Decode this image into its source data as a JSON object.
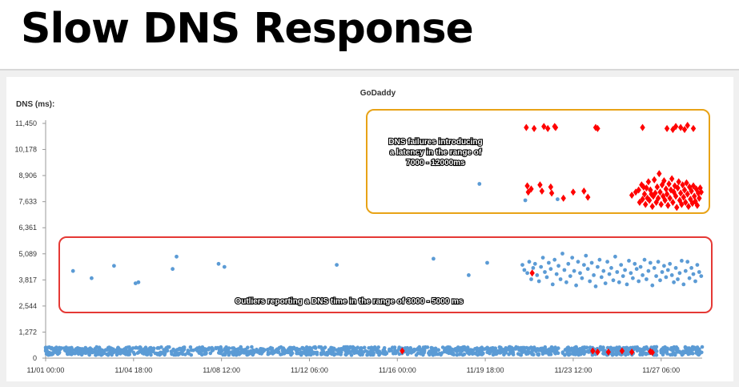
{
  "slide_title": "Slow DNS Response",
  "chart_data": {
    "type": "scatter",
    "title": "GoDaddy",
    "ylabel": "DNS (ms):",
    "xlabel": "",
    "ylim": [
      0,
      11450
    ],
    "yticks": [
      0,
      1272,
      2544,
      3817,
      5089,
      6361,
      7633,
      8906,
      10178,
      11450
    ],
    "ytick_labels": [
      "0",
      "1,272",
      "2,544",
      "3,817",
      "5,089",
      "6,361",
      "7,633",
      "8,906",
      "10,178",
      "11,450"
    ],
    "xlim_hours": [
      0,
      672
    ],
    "xticks": [
      {
        "label": "11/01 00:00",
        "h": 0
      },
      {
        "label": "11/04 18:00",
        "h": 90
      },
      {
        "label": "11/08 12:00",
        "h": 180
      },
      {
        "label": "11/12 06:00",
        "h": 270
      },
      {
        "label": "11/16 00:00",
        "h": 360
      },
      {
        "label": "11/19 18:00",
        "h": 450
      },
      {
        "label": "11/23 12:00",
        "h": 540
      },
      {
        "label": "11/27 06:00",
        "h": 630
      }
    ],
    "grid": false,
    "series": [
      {
        "color": "#5b9bd5",
        "marker": "circle",
        "outliers": [
          [
            28,
            4250
          ],
          [
            47,
            3900
          ],
          [
            70,
            4500
          ],
          [
            92,
            3650
          ],
          [
            95,
            3700
          ],
          [
            130,
            4350
          ],
          [
            134,
            4950
          ],
          [
            177,
            4600
          ],
          [
            183,
            4450
          ],
          [
            298,
            4550
          ],
          [
            397,
            4850
          ],
          [
            433,
            4050
          ],
          [
            452,
            4650
          ],
          [
            444,
            8500
          ],
          [
            491,
            7700
          ],
          [
            524,
            7750
          ],
          [
            488,
            4550
          ],
          [
            490,
            4300
          ],
          [
            493,
            4150
          ],
          [
            495,
            4700
          ],
          [
            497,
            3850
          ],
          [
            499,
            4400
          ],
          [
            501,
            4600
          ],
          [
            503,
            4050
          ],
          [
            505,
            3750
          ],
          [
            507,
            4450
          ],
          [
            509,
            4900
          ],
          [
            511,
            4200
          ],
          [
            513,
            3950
          ],
          [
            515,
            4650
          ],
          [
            517,
            4350
          ],
          [
            519,
            3600
          ],
          [
            521,
            4800
          ],
          [
            523,
            4100
          ],
          [
            525,
            4500
          ],
          [
            527,
            3850
          ],
          [
            529,
            5100
          ],
          [
            531,
            4300
          ],
          [
            533,
            3700
          ],
          [
            535,
            4600
          ],
          [
            537,
            4000
          ],
          [
            539,
            4900
          ],
          [
            541,
            4250
          ],
          [
            543,
            3550
          ],
          [
            545,
            4700
          ],
          [
            547,
            4150
          ],
          [
            549,
            3900
          ],
          [
            551,
            4550
          ],
          [
            553,
            5000
          ],
          [
            555,
            4350
          ],
          [
            557,
            3750
          ],
          [
            559,
            4650
          ],
          [
            561,
            4050
          ],
          [
            563,
            3500
          ],
          [
            565,
            4450
          ],
          [
            567,
            4800
          ],
          [
            569,
            3950
          ],
          [
            571,
            4250
          ],
          [
            573,
            3650
          ],
          [
            575,
            4700
          ],
          [
            577,
            4100
          ],
          [
            579,
            4400
          ],
          [
            581,
            3800
          ],
          [
            583,
            4950
          ],
          [
            585,
            4200
          ],
          [
            587,
            3700
          ],
          [
            589,
            4550
          ],
          [
            591,
            4000
          ],
          [
            593,
            4300
          ],
          [
            595,
            3600
          ],
          [
            597,
            4750
          ],
          [
            599,
            4150
          ],
          [
            601,
            3900
          ],
          [
            603,
            4600
          ],
          [
            605,
            4350
          ],
          [
            607,
            3750
          ],
          [
            609,
            4450
          ],
          [
            611,
            4050
          ],
          [
            613,
            4800
          ],
          [
            615,
            3850
          ],
          [
            617,
            4250
          ],
          [
            619,
            4650
          ],
          [
            621,
            3550
          ],
          [
            623,
            4400
          ],
          [
            625,
            4000
          ],
          [
            627,
            4700
          ],
          [
            629,
            3800
          ],
          [
            631,
            4200
          ],
          [
            633,
            4500
          ],
          [
            635,
            3950
          ],
          [
            637,
            4300
          ],
          [
            639,
            4600
          ],
          [
            641,
            4050
          ],
          [
            643,
            3700
          ],
          [
            645,
            4400
          ],
          [
            647,
            3850
          ],
          [
            649,
            4150
          ],
          [
            651,
            4750
          ],
          [
            653,
            3600
          ],
          [
            655,
            4250
          ],
          [
            657,
            4700
          ],
          [
            659,
            3900
          ],
          [
            661,
            4400
          ],
          [
            663,
            4100
          ],
          [
            665,
            3750
          ],
          [
            667,
            4550
          ],
          [
            669,
            4200
          ],
          [
            671,
            4000
          ]
        ],
        "baseline_range_ms": [
          150,
          550
        ]
      },
      {
        "color": "#ff0000",
        "marker": "diamond",
        "points": [
          [
            492,
            11250
          ],
          [
            500,
            11200
          ],
          [
            510,
            11300
          ],
          [
            514,
            11200
          ],
          [
            521,
            11300
          ],
          [
            522,
            11250
          ],
          [
            563,
            11250
          ],
          [
            565,
            11200
          ],
          [
            611,
            11250
          ],
          [
            636,
            11200
          ],
          [
            642,
            11150
          ],
          [
            645,
            11300
          ],
          [
            650,
            11250
          ],
          [
            654,
            11150
          ],
          [
            657,
            11350
          ],
          [
            663,
            11200
          ],
          [
            493,
            8400
          ],
          [
            494,
            8100
          ],
          [
            497,
            8250
          ],
          [
            506,
            8450
          ],
          [
            508,
            8150
          ],
          [
            517,
            8350
          ],
          [
            518,
            8050
          ],
          [
            530,
            7800
          ],
          [
            540,
            8100
          ],
          [
            551,
            8150
          ],
          [
            555,
            7850
          ],
          [
            600,
            7950
          ],
          [
            607,
            8200
          ],
          [
            612,
            8350
          ],
          [
            616,
            7800
          ],
          [
            620,
            8000
          ],
          [
            604,
            8100
          ],
          [
            608,
            7600
          ],
          [
            610,
            8450
          ],
          [
            611,
            7750
          ],
          [
            613,
            8000
          ],
          [
            614,
            7500
          ],
          [
            615,
            8300
          ],
          [
            617,
            8600
          ],
          [
            618,
            7700
          ],
          [
            619,
            8200
          ],
          [
            621,
            7400
          ],
          [
            622,
            7900
          ],
          [
            623,
            8700
          ],
          [
            624,
            8050
          ],
          [
            625,
            7600
          ],
          [
            626,
            8350
          ],
          [
            627,
            7800
          ],
          [
            628,
            9000
          ],
          [
            629,
            8100
          ],
          [
            630,
            7500
          ],
          [
            631,
            8450
          ],
          [
            632,
            7900
          ],
          [
            633,
            8650
          ],
          [
            634,
            7700
          ],
          [
            635,
            8250
          ],
          [
            636,
            8000
          ],
          [
            637,
            7450
          ],
          [
            638,
            8500
          ],
          [
            639,
            7800
          ],
          [
            640,
            8200
          ],
          [
            641,
            8750
          ],
          [
            642,
            7600
          ],
          [
            643,
            8100
          ],
          [
            644,
            8400
          ],
          [
            645,
            7900
          ],
          [
            646,
            7350
          ],
          [
            647,
            8300
          ],
          [
            648,
            8600
          ],
          [
            649,
            7700
          ],
          [
            650,
            8050
          ],
          [
            651,
            7500
          ],
          [
            652,
            8450
          ],
          [
            653,
            7850
          ],
          [
            654,
            8200
          ],
          [
            655,
            7600
          ],
          [
            656,
            8550
          ],
          [
            657,
            8000
          ],
          [
            658,
            7400
          ],
          [
            659,
            8350
          ],
          [
            660,
            7750
          ],
          [
            661,
            8150
          ],
          [
            662,
            7550
          ],
          [
            663,
            8400
          ],
          [
            664,
            7900
          ],
          [
            665,
            7650
          ],
          [
            666,
            8250
          ],
          [
            667,
            7450
          ],
          [
            668,
            8050
          ],
          [
            669,
            7800
          ],
          [
            670,
            8300
          ],
          [
            671,
            8100
          ],
          [
            498,
            4150
          ],
          [
            365,
            350
          ],
          [
            560,
            350
          ],
          [
            565,
            300
          ],
          [
            576,
            300
          ],
          [
            590,
            350
          ],
          [
            600,
            300
          ],
          [
            619,
            320
          ],
          [
            621,
            280
          ]
        ]
      }
    ],
    "annotations": [
      {
        "text": "DNS failures introducing a latency in the range of 7000 - 12000ms",
        "color": "#e8a317"
      },
      {
        "text": "Outliers reporting a DNS time in the range of 3000 - 5000 ms",
        "color": "#e53935"
      }
    ]
  },
  "annotation_lines": {
    "failures": [
      "DNS failures introducing",
      "a latency in the range of",
      "7000 - 12000ms"
    ],
    "outliers": [
      "Outliers reporting a DNS time in the range of 3000 - 5000 ms"
    ]
  }
}
